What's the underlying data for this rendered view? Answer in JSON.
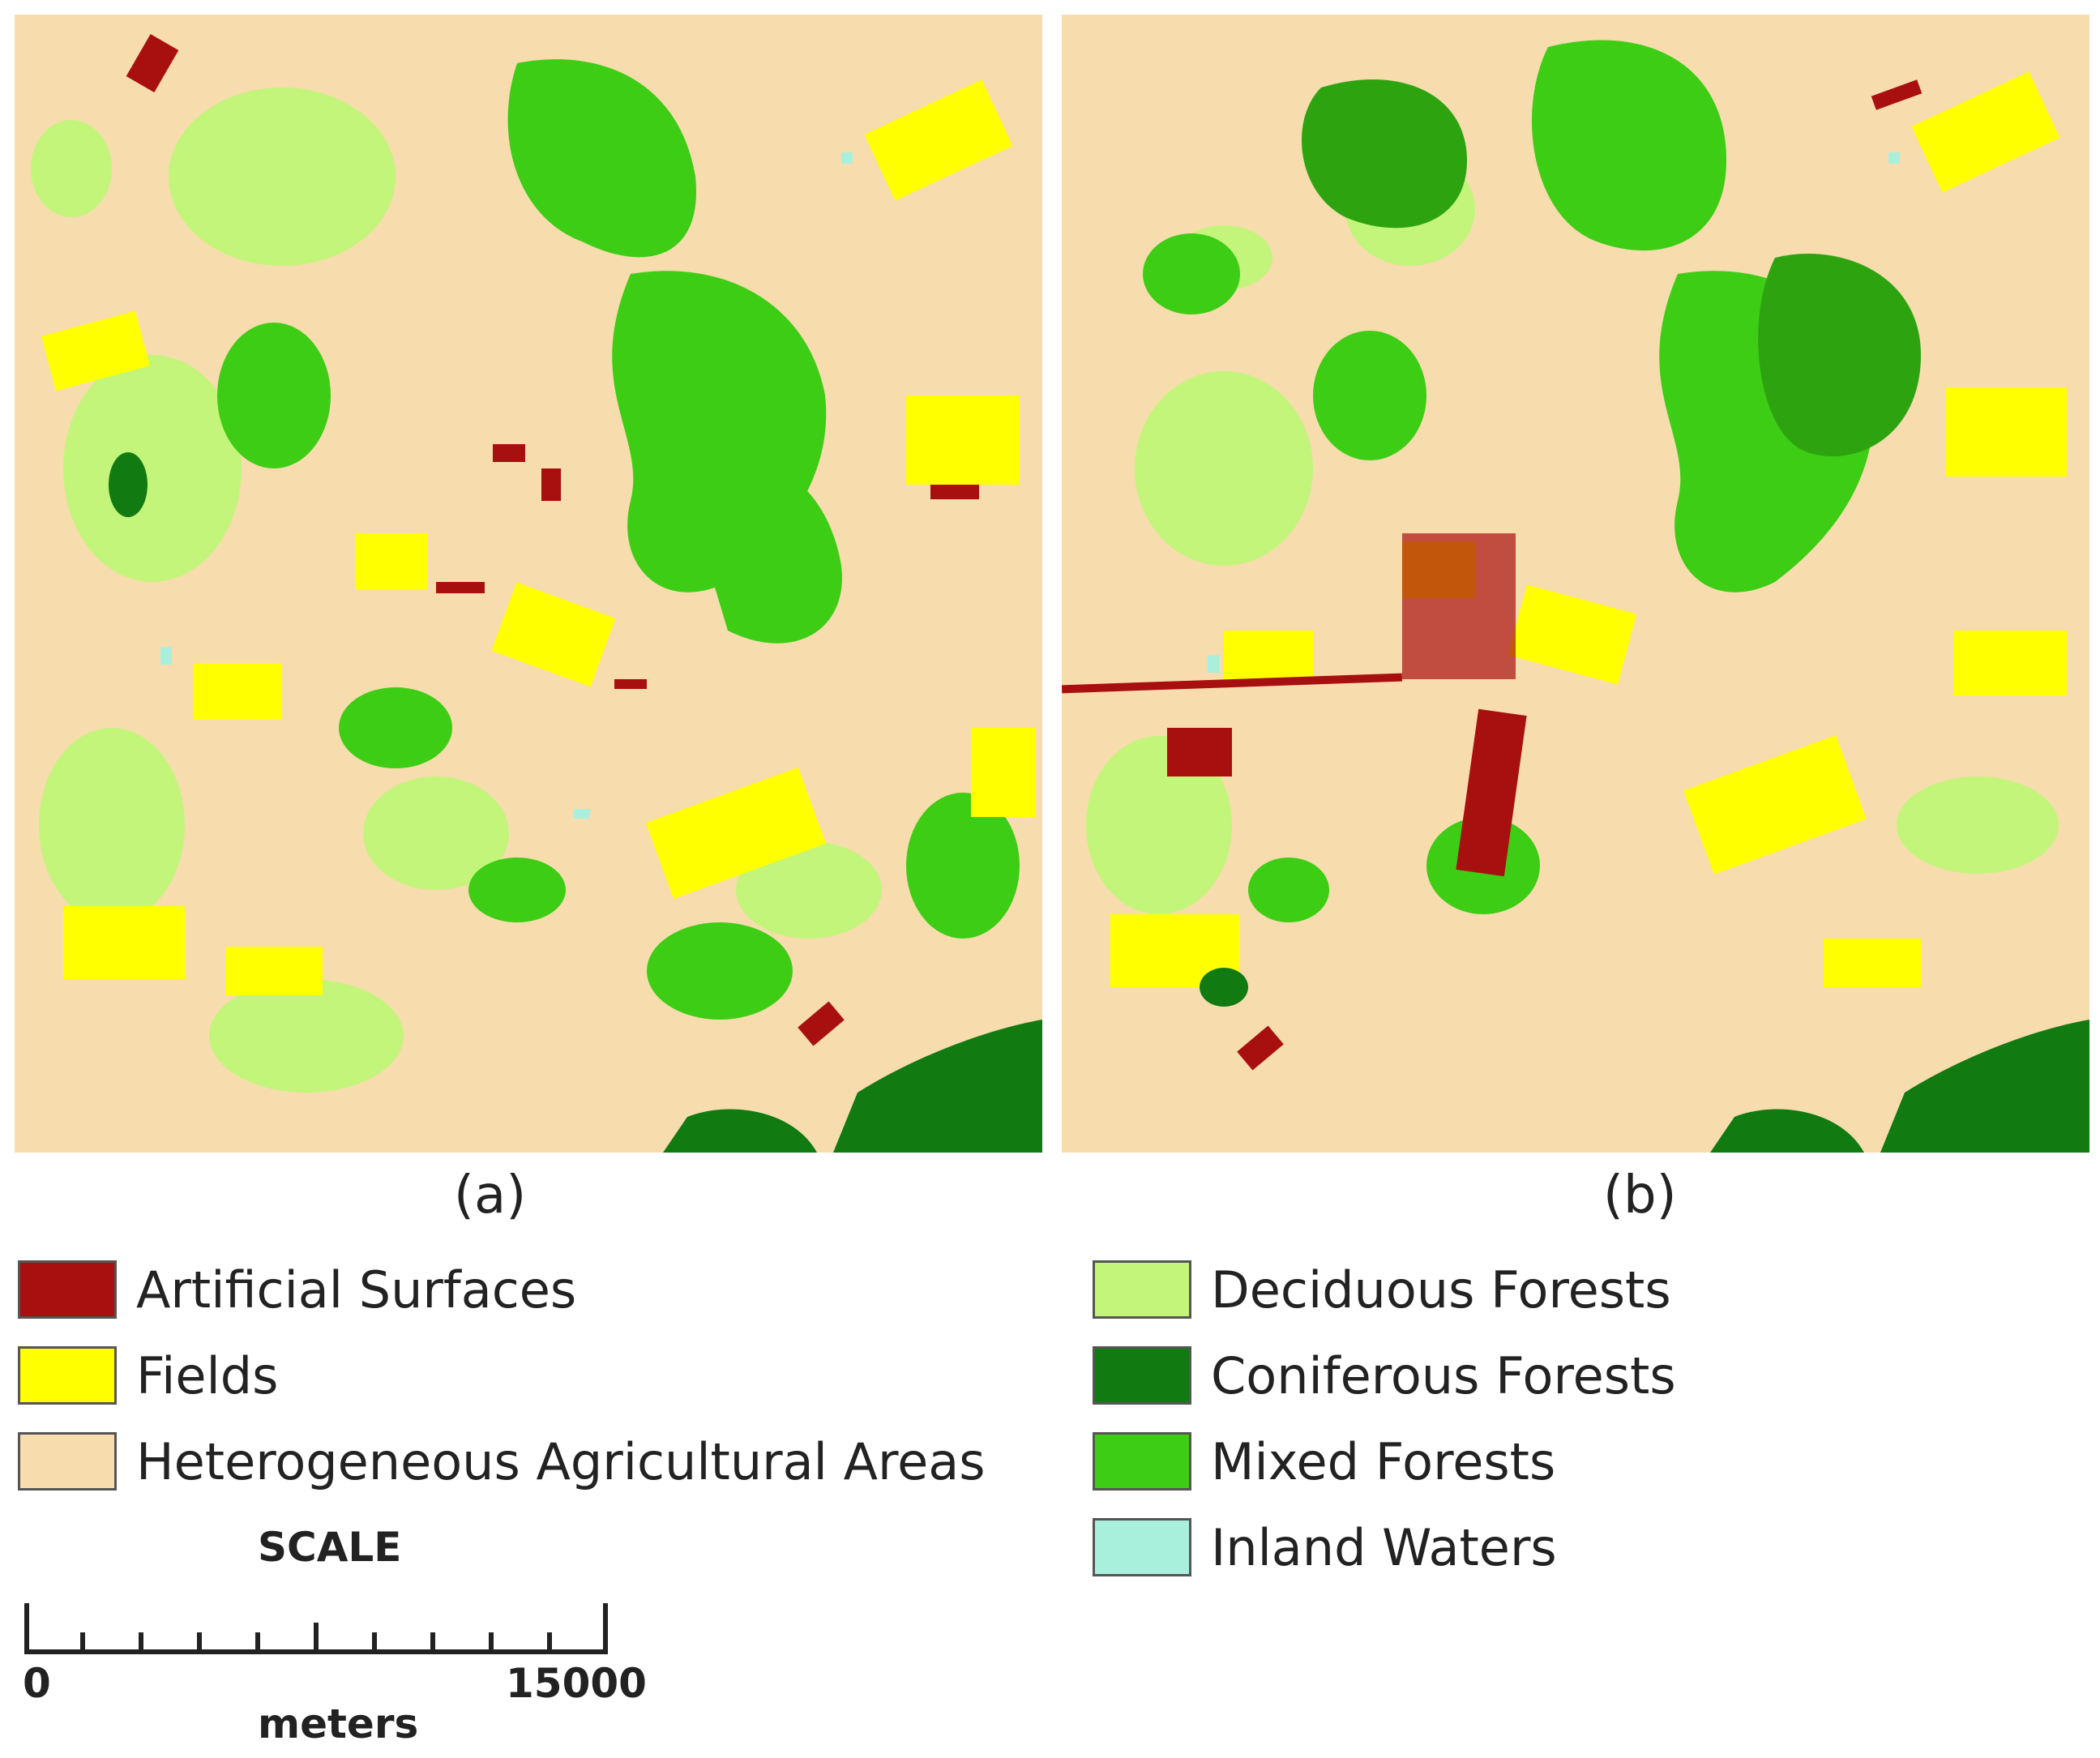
{
  "maps": [
    {
      "caption": "(a)"
    },
    {
      "caption": "(b)"
    }
  ],
  "legend": {
    "left": [
      {
        "label": "Artificial Surfaces",
        "color": "#a81010",
        "icon": "artificial-surfaces-swatch"
      },
      {
        "label": "Fields",
        "color": "#ffff00",
        "icon": "fields-swatch"
      },
      {
        "label": "Heterogeneous Agricultural Areas",
        "color": "#f7dcae",
        "icon": "heterogeneous-agricultural-swatch"
      }
    ],
    "right": [
      {
        "label": "Deciduous Forests",
        "color": "#c3f57a",
        "icon": "deciduous-forests-swatch"
      },
      {
        "label": "Coniferous Forests",
        "color": "#117a11",
        "icon": "coniferous-forests-swatch"
      },
      {
        "label": "Mixed Forests",
        "color": "#3ccd14",
        "icon": "mixed-forests-swatch"
      },
      {
        "label": "Inland Waters",
        "color": "#a8f0dc",
        "icon": "inland-waters-swatch"
      }
    ]
  },
  "scale": {
    "title": "SCALE",
    "min": "0",
    "max": "15000",
    "unit": "meters"
  }
}
